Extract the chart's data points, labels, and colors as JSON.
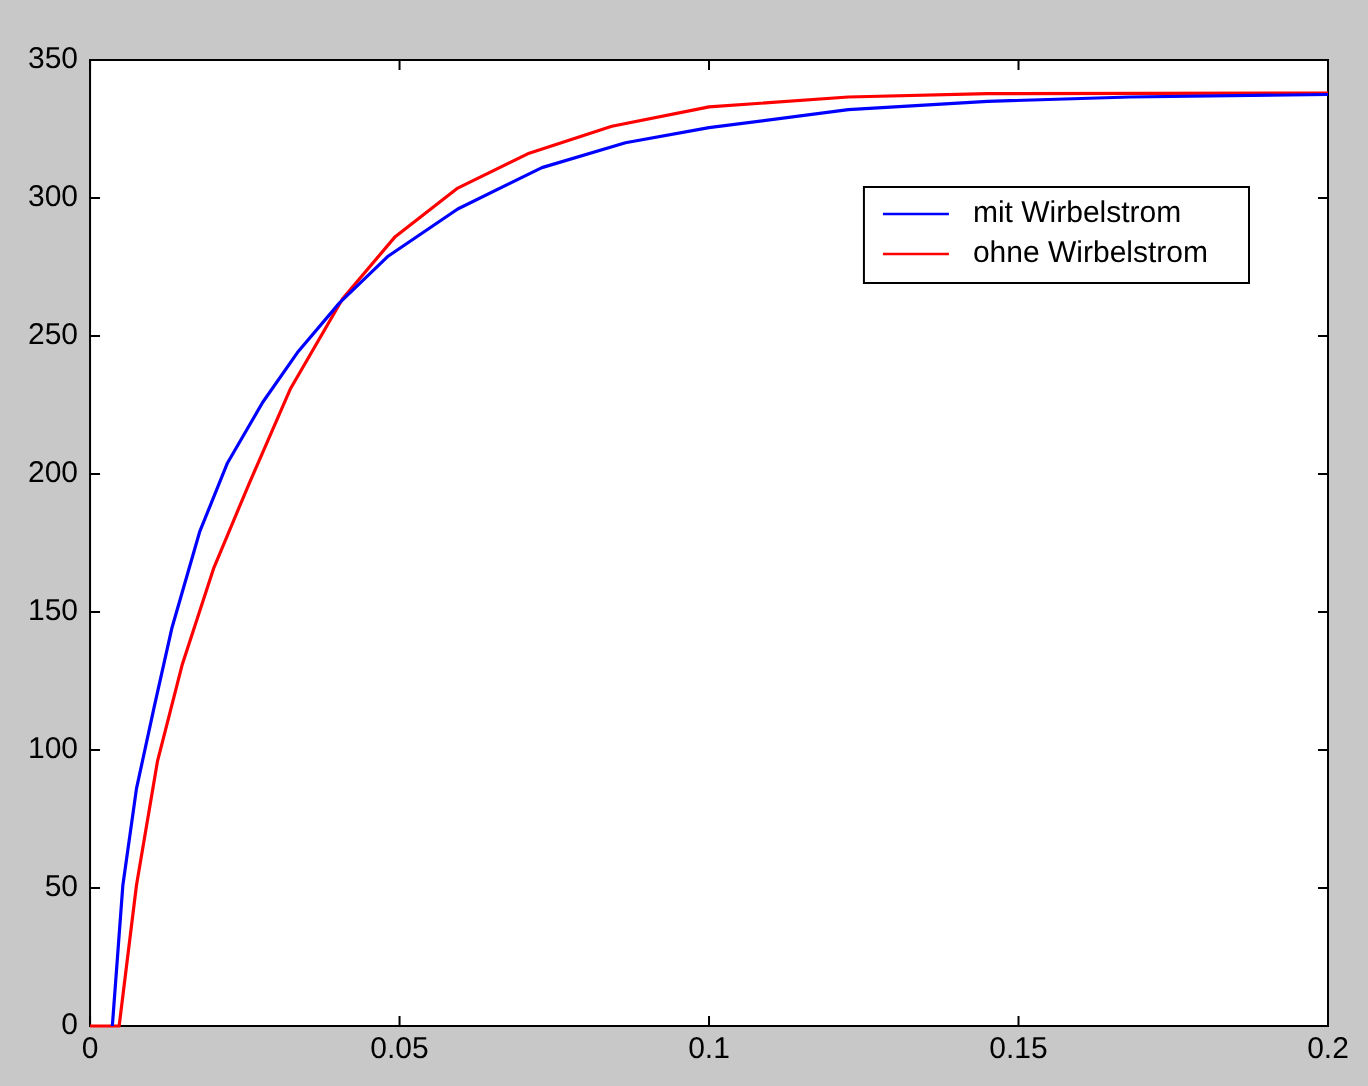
{
  "chart_data": {
    "type": "line",
    "x": [
      0.0036,
      0.0053,
      0.0075,
      0.0104,
      0.0132,
      0.0177,
      0.0222,
      0.0279,
      0.0335,
      0.0403,
      0.0482,
      0.0594,
      0.073,
      0.0865,
      0.1,
      0.1225,
      0.145,
      0.168,
      0.2
    ],
    "series": [
      {
        "name": "mit Wirbelstrom",
        "color": "#0000ff",
        "values": [
          0,
          51,
          86,
          116,
          144,
          179,
          204,
          226,
          244,
          262,
          279,
          296,
          311,
          320,
          325.5,
          332,
          335,
          336.6,
          337.5
        ]
      },
      {
        "name": "ohne Wirbelstrom",
        "color": "#ff0000",
        "x": [
          0,
          0.0036,
          0.0047,
          0.0075,
          0.0109,
          0.0149,
          0.02,
          0.0256,
          0.0324,
          0.0408,
          0.0493,
          0.0594,
          0.0707,
          0.0843,
          0.0978,
          0.1,
          0.1225,
          0.145,
          0.2
        ],
        "values": [
          0,
          0,
          0,
          51,
          96,
          131,
          166,
          196,
          231,
          263.5,
          286,
          303.6,
          316,
          326,
          332,
          333,
          336.6,
          337.8,
          338
        ]
      }
    ],
    "xlim": [
      0,
      0.2
    ],
    "xticks": [
      0,
      0.05,
      0.1,
      0.15,
      0.2
    ],
    "ylim": [
      0,
      350
    ],
    "yticks": [
      0,
      50,
      100,
      150,
      200,
      250,
      300,
      350
    ],
    "grid": false,
    "legend": "top right",
    "marker": "none",
    "line_style": "solid"
  }
}
